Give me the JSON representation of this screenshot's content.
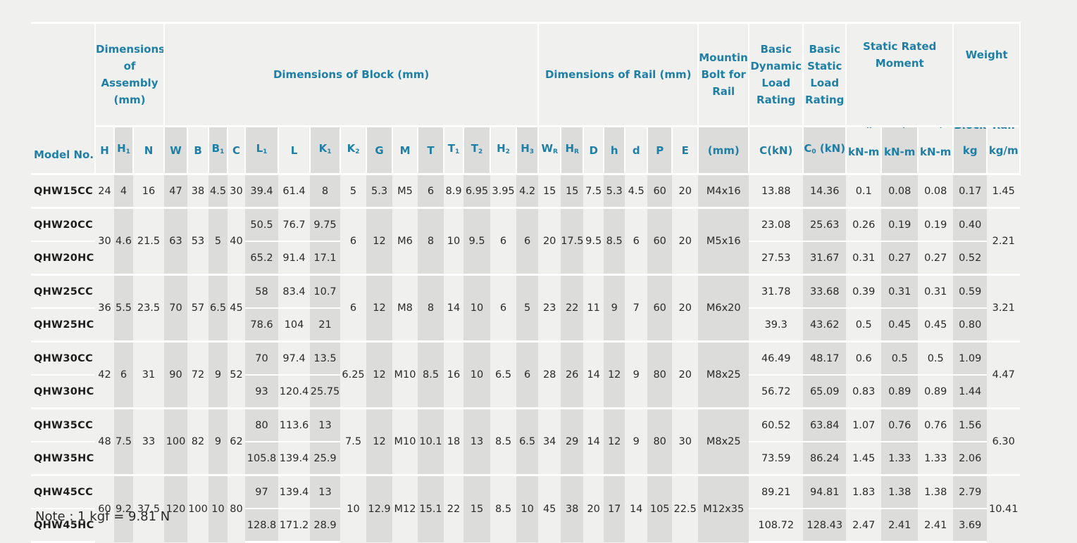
{
  "headers": {
    "model_no": "Model No.",
    "assembly": "Dimensions of Assembly (mm)",
    "block": "Dimensions of Block (mm)",
    "rail": "Dimensions of Rail (mm)",
    "bolt": "Mounting Bolt for Rail",
    "dynamic": "Basic Dynamic Load Rating",
    "static": "Basic Static Load Rating",
    "moment": "Static Rated Moment",
    "weight": "Weight",
    "bolt_unit": "(mm)",
    "dynamic_unit": "C(kN)",
    "static_unit": "C",
    "static_unit_sub": "0",
    "static_unit_suffix": " (kN)",
    "moment_unit": "kN-m",
    "block_label": "Block",
    "rail_label": "Rail",
    "block_unit": "kg",
    "rail_unit": "kg/m",
    "cols": [
      {
        "base": "H",
        "sub": ""
      },
      {
        "base": "H",
        "sub": "1"
      },
      {
        "base": "N",
        "sub": ""
      },
      {
        "base": "W",
        "sub": ""
      },
      {
        "base": "B",
        "sub": ""
      },
      {
        "base": "B",
        "sub": "1"
      },
      {
        "base": "C",
        "sub": ""
      },
      {
        "base": "L",
        "sub": "1"
      },
      {
        "base": "L",
        "sub": ""
      },
      {
        "base": "K",
        "sub": "1"
      },
      {
        "base": "K",
        "sub": "2"
      },
      {
        "base": "G",
        "sub": ""
      },
      {
        "base": "M",
        "sub": ""
      },
      {
        "base": "T",
        "sub": ""
      },
      {
        "base": "T",
        "sub": "1"
      },
      {
        "base": "T",
        "sub": "2"
      },
      {
        "base": "H",
        "sub": "2"
      },
      {
        "base": "H",
        "sub": "3"
      },
      {
        "base": "W",
        "sub": "R"
      },
      {
        "base": "H",
        "sub": "R"
      },
      {
        "base": "D",
        "sub": ""
      },
      {
        "base": "h",
        "sub": ""
      },
      {
        "base": "d",
        "sub": ""
      },
      {
        "base": "P",
        "sub": ""
      },
      {
        "base": "E",
        "sub": ""
      }
    ],
    "moments": [
      {
        "base": "M",
        "sub": "R"
      },
      {
        "base": "M",
        "sub": "P"
      },
      {
        "base": "M",
        "sub": "Y"
      }
    ]
  },
  "groups": [
    {
      "rows": [
        {
          "model": "QHW15CC",
          "L1": "39.4",
          "L": "61.4",
          "K1": "8",
          "C": "13.88",
          "C0": "14.36",
          "MR": "0.1",
          "MP": "0.08",
          "MY": "0.08",
          "block": "0.17"
        }
      ],
      "shared": {
        "H": "24",
        "H1": "4",
        "N": "16",
        "W": "47",
        "B": "38",
        "B1": "4.5",
        "Cc": "30",
        "K2": "5",
        "G": "5.3",
        "M": "M5",
        "T": "6",
        "T1": "8.9",
        "T2": "6.95",
        "H2": "3.95",
        "H3": "4.2",
        "WR": "15",
        "HR": "15",
        "D": "7.5",
        "h": "5.3",
        "d": "4.5",
        "P": "60",
        "E": "20",
        "bolt": "M4x16",
        "rail": "1.45"
      }
    },
    {
      "rows": [
        {
          "model": "QHW20CC",
          "L1": "50.5",
          "L": "76.7",
          "K1": "9.75",
          "C": "23.08",
          "C0": "25.63",
          "MR": "0.26",
          "MP": "0.19",
          "MY": "0.19",
          "block": "0.40"
        },
        {
          "model": "QHW20HC",
          "L1": "65.2",
          "L": "91.4",
          "K1": "17.1",
          "C": "27.53",
          "C0": "31.67",
          "MR": "0.31",
          "MP": "0.27",
          "MY": "0.27",
          "block": "0.52"
        }
      ],
      "shared": {
        "H": "30",
        "H1": "4.6",
        "N": "21.5",
        "W": "63",
        "B": "53",
        "B1": "5",
        "Cc": "40",
        "K2": "6",
        "G": "12",
        "M": "M6",
        "T": "8",
        "T1": "10",
        "T2": "9.5",
        "H2": "6",
        "H3": "6",
        "WR": "20",
        "HR": "17.5",
        "D": "9.5",
        "h": "8.5",
        "d": "6",
        "P": "60",
        "E": "20",
        "bolt": "M5x16",
        "rail": "2.21"
      }
    },
    {
      "rows": [
        {
          "model": "QHW25CC",
          "L1": "58",
          "L": "83.4",
          "K1": "10.7",
          "C": "31.78",
          "C0": "33.68",
          "MR": "0.39",
          "MP": "0.31",
          "MY": "0.31",
          "block": "0.59"
        },
        {
          "model": "QHW25HC",
          "L1": "78.6",
          "L": "104",
          "K1": "21",
          "C": "39.3",
          "C0": "43.62",
          "MR": "0.5",
          "MP": "0.45",
          "MY": "0.45",
          "block": "0.80"
        }
      ],
      "shared": {
        "H": "36",
        "H1": "5.5",
        "N": "23.5",
        "W": "70",
        "B": "57",
        "B1": "6.5",
        "Cc": "45",
        "K2": "6",
        "G": "12",
        "M": "M8",
        "T": "8",
        "T1": "14",
        "T2": "10",
        "H2": "6",
        "H3": "5",
        "WR": "23",
        "HR": "22",
        "D": "11",
        "h": "9",
        "d": "7",
        "P": "60",
        "E": "20",
        "bolt": "M6x20",
        "rail": "3.21"
      }
    },
    {
      "rows": [
        {
          "model": "QHW30CC",
          "L1": "70",
          "L": "97.4",
          "K1": "13.5",
          "C": "46.49",
          "C0": "48.17",
          "MR": "0.6",
          "MP": "0.5",
          "MY": "0.5",
          "block": "1.09"
        },
        {
          "model": "QHW30HC",
          "L1": "93",
          "L": "120.4",
          "K1": "25.75",
          "C": "56.72",
          "C0": "65.09",
          "MR": "0.83",
          "MP": "0.89",
          "MY": "0.89",
          "block": "1.44"
        }
      ],
      "shared": {
        "H": "42",
        "H1": "6",
        "N": "31",
        "W": "90",
        "B": "72",
        "B1": "9",
        "Cc": "52",
        "K2": "6.25",
        "G": "12",
        "M": "M10",
        "T": "8.5",
        "T1": "16",
        "T2": "10",
        "H2": "6.5",
        "H3": "6",
        "WR": "28",
        "HR": "26",
        "D": "14",
        "h": "12",
        "d": "9",
        "P": "80",
        "E": "20",
        "bolt": "M8x25",
        "rail": "4.47"
      }
    },
    {
      "rows": [
        {
          "model": "QHW35CC",
          "L1": "80",
          "L": "113.6",
          "K1": "13",
          "C": "60.52",
          "C0": "63.84",
          "MR": "1.07",
          "MP": "0.76",
          "MY": "0.76",
          "block": "1.56"
        },
        {
          "model": "QHW35HC",
          "L1": "105.8",
          "L": "139.4",
          "K1": "25.9",
          "C": "73.59",
          "C0": "86.24",
          "MR": "1.45",
          "MP": "1.33",
          "MY": "1.33",
          "block": "2.06"
        }
      ],
      "shared": {
        "H": "48",
        "H1": "7.5",
        "N": "33",
        "W": "100",
        "B": "82",
        "B1": "9",
        "Cc": "62",
        "K2": "7.5",
        "G": "12",
        "M": "M10",
        "T": "10.1",
        "T1": "18",
        "T2": "13",
        "H2": "8.5",
        "H3": "6.5",
        "WR": "34",
        "HR": "29",
        "D": "14",
        "h": "12",
        "d": "9",
        "P": "80",
        "E": "30",
        "bolt": "M8x25",
        "rail": "6.30"
      }
    },
    {
      "rows": [
        {
          "model": "QHW45CC",
          "L1": "97",
          "L": "139.4",
          "K1": "13",
          "C": "89.21",
          "C0": "94.81",
          "MR": "1.83",
          "MP": "1.38",
          "MY": "1.38",
          "block": "2.79"
        },
        {
          "model": "QHW45HC",
          "L1": "128.8",
          "L": "171.2",
          "K1": "28.9",
          "C": "108.72",
          "C0": "128.43",
          "MR": "2.47",
          "MP": "2.41",
          "MY": "2.41",
          "block": "3.69"
        }
      ],
      "shared": {
        "H": "60",
        "H1": "9.2",
        "N": "37.5",
        "W": "120",
        "B": "100",
        "B1": "10",
        "Cc": "80",
        "K2": "10",
        "G": "12.9",
        "M": "M12",
        "T": "15.1",
        "T1": "22",
        "T2": "15",
        "H2": "8.5",
        "H3": "10",
        "WR": "45",
        "HR": "38",
        "D": "20",
        "h": "17",
        "d": "14",
        "P": "105",
        "E": "22.5",
        "bolt": "M12x35",
        "rail": "10.41"
      }
    }
  ],
  "note": "Note : 1 kgf = 9.81 N"
}
